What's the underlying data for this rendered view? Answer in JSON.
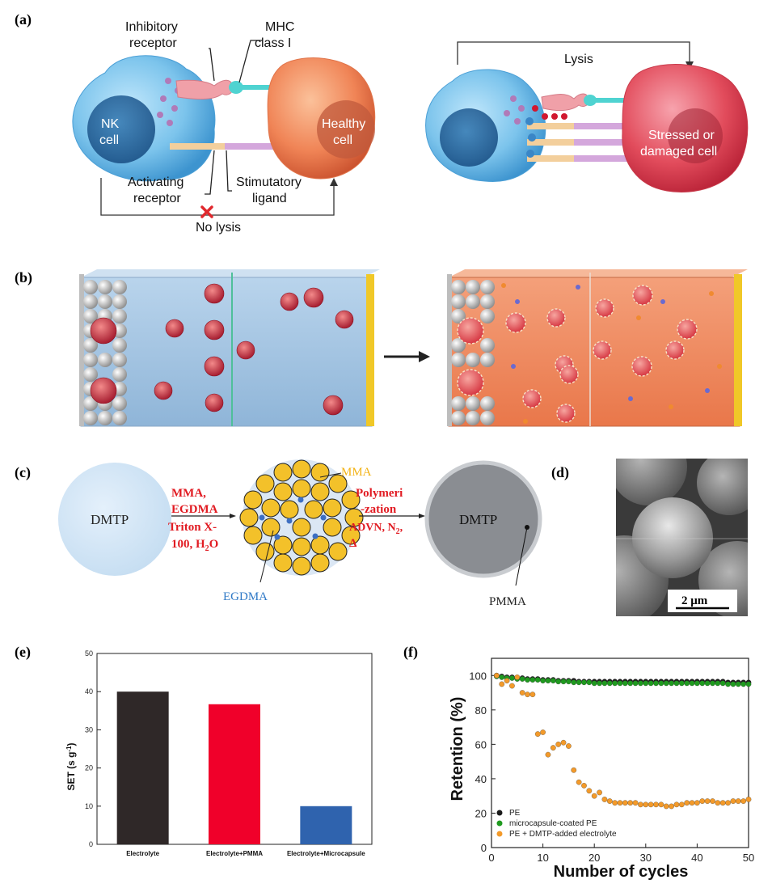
{
  "panels": {
    "a": {
      "label": "(a)",
      "inhibitory_receptor_line1": "Inhibitory",
      "inhibitory_receptor_line2": "receptor",
      "mhc_line1": "MHC",
      "mhc_line2": "class I",
      "nk_line1": "NK",
      "nk_line2": "cell",
      "healthy_line1": "Healthy",
      "healthy_line2": "cell",
      "activating_line1": "Activating",
      "activating_line2": "receptor",
      "stimulatory_line1": "Stimutatory",
      "stimulatory_line2": "ligand",
      "no_lysis": "No lysis",
      "lysis": "Lysis",
      "stressed_line1": "Stressed or",
      "stressed_line2": "damaged cell"
    },
    "b": {
      "label": "(b)"
    },
    "c": {
      "label": "(c)",
      "dmtp_left": "DMTP",
      "step1_line1": "MMA,",
      "step1_line2": "EGDMA",
      "step1_line3": "Triton X-",
      "step1_line4": "100, H",
      "step1_sub": "2",
      "step1_line4_end": "O",
      "mma": "MMA",
      "egdma": "EGDMA",
      "step2_line1": "Polymeri",
      "step2_line2": "-zation",
      "step2_line3": "ADVN, N",
      "step2_sub": "2",
      "step2_line3_end": ",",
      "step2_line4": "Δ",
      "dmtp_right": "DMTP",
      "pmma": "PMMA"
    },
    "d": {
      "label": "(d)",
      "scale_bar": "2 μm"
    },
    "e": {
      "label": "(e)"
    },
    "f": {
      "label": "(f)"
    }
  },
  "chart_data": [
    {
      "type": "bar",
      "panel": "e",
      "categories": [
        "Electrolyte",
        "Electrolyte+PMMA",
        "Electrolyte+Microcapsule"
      ],
      "values": [
        40,
        36.7,
        10
      ],
      "colors": [
        "#2f2828",
        "#f0002a",
        "#2f63ae"
      ],
      "ylabel": "SET (s g",
      "ylabel_sup": "-1",
      "ylabel_end": ")",
      "ylim": [
        0,
        50
      ],
      "yticks": [
        "0",
        "10",
        "20",
        "30",
        "40",
        "50"
      ]
    },
    {
      "type": "scatter",
      "panel": "f",
      "xlabel": "Number of cycles",
      "ylabel": "Retention (%)",
      "xlim": [
        0,
        50
      ],
      "ylim": [
        0,
        110
      ],
      "xticks": [
        "0",
        "10",
        "20",
        "30",
        "40",
        "50"
      ],
      "yticks": [
        "0",
        "20",
        "40",
        "60",
        "80",
        "100"
      ],
      "series": [
        {
          "name": "PE",
          "color": "#1a1a1a",
          "x": [
            1,
            2,
            3,
            4,
            5,
            6,
            7,
            8,
            9,
            10,
            11,
            12,
            13,
            14,
            15,
            16,
            17,
            18,
            19,
            20,
            21,
            22,
            23,
            24,
            25,
            26,
            27,
            28,
            29,
            30,
            31,
            32,
            33,
            34,
            35,
            36,
            37,
            38,
            39,
            40,
            41,
            42,
            43,
            44,
            45,
            46,
            47,
            48,
            49,
            50
          ],
          "y": [
            100,
            99.5,
            99,
            99,
            98.5,
            98.5,
            98,
            98,
            98,
            97.5,
            97.5,
            97.5,
            97,
            97,
            97,
            97,
            96.5,
            96.5,
            96.5,
            96.5,
            96.5,
            96.5,
            96.5,
            96.5,
            96.5,
            96.5,
            96.5,
            96.5,
            96.5,
            96.5,
            96.5,
            96.5,
            96.5,
            96.5,
            96.5,
            96.5,
            96.5,
            96.5,
            96.5,
            96.5,
            96.5,
            96.5,
            96.5,
            96.5,
            96.5,
            96,
            96,
            96,
            96,
            96
          ]
        },
        {
          "name": "microcapsule-coated PE",
          "color": "#1f9a1f",
          "x": [
            1,
            2,
            3,
            4,
            5,
            6,
            7,
            8,
            9,
            10,
            11,
            12,
            13,
            14,
            15,
            16,
            17,
            18,
            19,
            20,
            21,
            22,
            23,
            24,
            25,
            26,
            27,
            28,
            29,
            30,
            31,
            32,
            33,
            34,
            35,
            36,
            37,
            38,
            39,
            40,
            41,
            42,
            43,
            44,
            45,
            46,
            47,
            48,
            49,
            50
          ],
          "y": [
            99.5,
            99,
            98.5,
            98.5,
            98,
            98,
            97.5,
            97.5,
            97.5,
            97,
            97,
            97,
            96.5,
            96.5,
            96.5,
            96,
            96,
            96,
            96,
            95.5,
            95.5,
            95.5,
            95.5,
            95.5,
            95.5,
            95.5,
            95.5,
            95.5,
            95.5,
            95.5,
            95.5,
            95.5,
            95.5,
            95.5,
            95.5,
            95.5,
            95.5,
            95.5,
            95.5,
            95.5,
            95.5,
            95.5,
            95.5,
            95.5,
            95.5,
            95,
            95,
            95,
            95,
            95
          ]
        },
        {
          "name": "PE + DMTP-added electrolyte",
          "color": "#f39a2a",
          "x": [
            1,
            2,
            3,
            4,
            5,
            6,
            7,
            8,
            9,
            10,
            11,
            12,
            13,
            14,
            15,
            16,
            17,
            18,
            19,
            20,
            21,
            22,
            23,
            24,
            25,
            26,
            27,
            28,
            29,
            30,
            31,
            32,
            33,
            34,
            35,
            36,
            37,
            38,
            39,
            40,
            41,
            42,
            43,
            44,
            45,
            46,
            47,
            48,
            49,
            50
          ],
          "y": [
            100,
            95,
            97,
            94,
            99,
            90,
            89,
            89,
            66,
            67,
            54,
            58,
            60,
            61,
            59,
            45,
            38,
            36,
            33,
            30,
            32,
            28,
            27,
            26,
            26,
            26,
            26,
            26,
            25,
            25,
            25,
            25,
            25,
            24,
            24,
            25,
            25,
            26,
            26,
            26,
            27,
            27,
            27,
            26,
            26,
            26,
            27,
            27,
            27,
            28
          ]
        }
      ]
    }
  ]
}
